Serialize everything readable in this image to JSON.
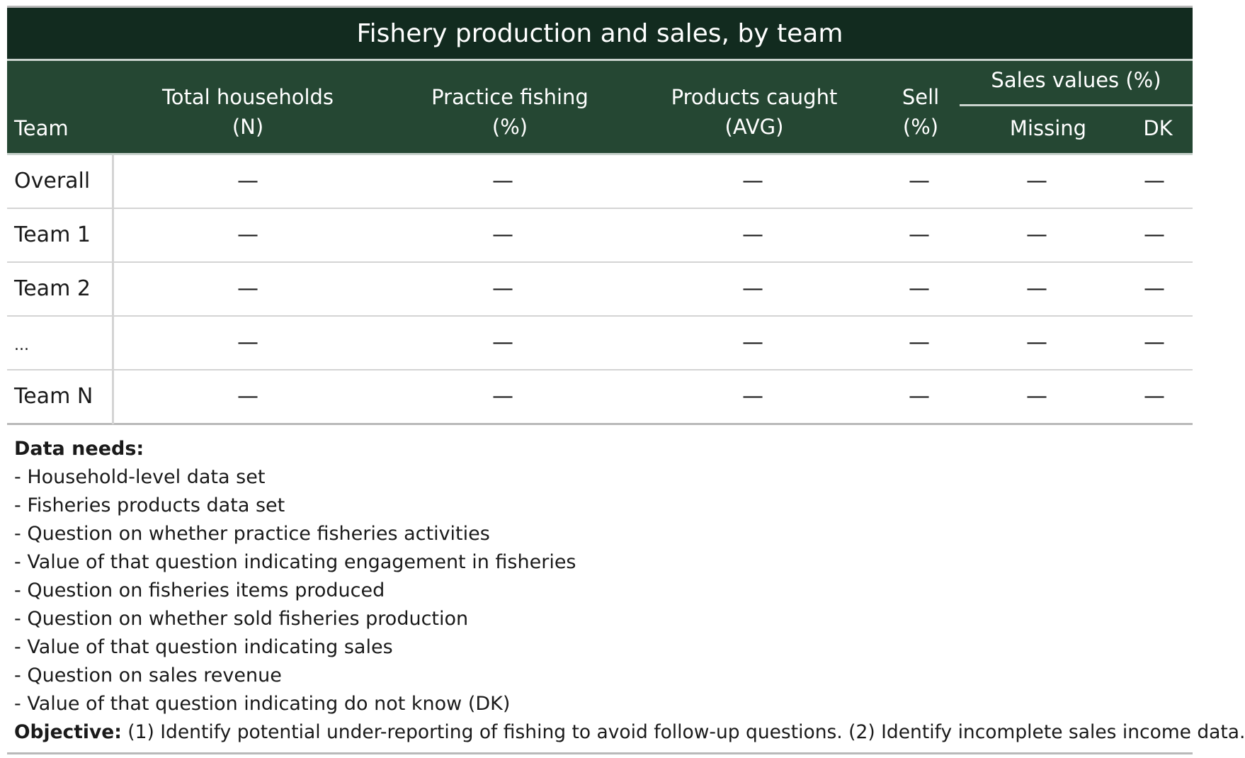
{
  "title": "Fishery production and sales, by team",
  "colors": {
    "title_bg": "#122b1f",
    "header_bg": "#254733",
    "header_text": "#ffffff",
    "rule": "#b9b9b9"
  },
  "header": {
    "team": "Team",
    "total_households": [
      "Total households",
      "(N)"
    ],
    "practice_fishing": [
      "Practice fishing",
      "(%)"
    ],
    "products_caught": [
      "Products caught",
      "(AVG)"
    ],
    "sell": [
      "Sell",
      "(%)"
    ],
    "sales_values_group": "Sales values (%)",
    "missing": "Missing",
    "dk": "DK"
  },
  "rows": [
    {
      "team": "Overall",
      "cells": [
        "—",
        "—",
        "—",
        "—",
        "—",
        "—"
      ]
    },
    {
      "team": "Team 1",
      "cells": [
        "—",
        "—",
        "—",
        "—",
        "—",
        "—"
      ]
    },
    {
      "team": "Team 2",
      "cells": [
        "—",
        "—",
        "—",
        "—",
        "—",
        "—"
      ]
    },
    {
      "team": "...",
      "cells": [
        "—",
        "—",
        "—",
        "—",
        "—",
        "—"
      ]
    },
    {
      "team": "Team N",
      "cells": [
        "—",
        "—",
        "—",
        "—",
        "—",
        "—"
      ]
    }
  ],
  "data_needs": {
    "heading": "Data needs:",
    "items": [
      "- Household-level data set",
      "- Fisheries products data set",
      "- Question on whether practice fisheries activities",
      "- Value of that question indicating engagement in fisheries",
      "- Question on fisheries items produced",
      "- Question on whether sold fisheries production",
      "- Value of that question indicating sales",
      "- Question on sales revenue",
      "- Value of that question indicating do not know (DK)"
    ]
  },
  "objective": {
    "label": "Objective:",
    "text": " (1) Identify potential under-reporting of fishing to avoid follow-up questions. (2) Identify incomplete sales income data."
  }
}
